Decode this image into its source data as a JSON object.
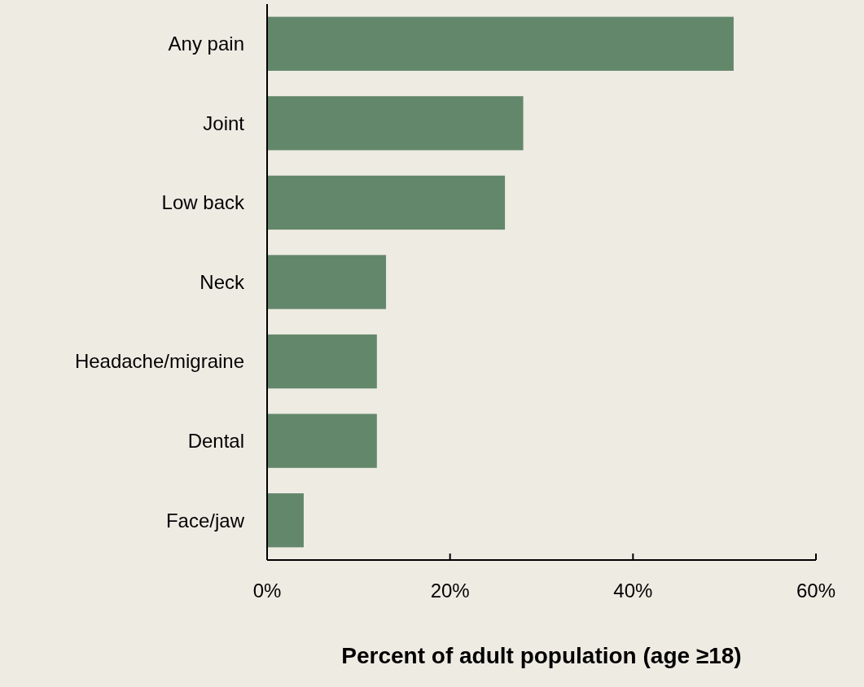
{
  "chart_data": {
    "type": "bar",
    "orientation": "horizontal",
    "categories": [
      "Any pain",
      "Joint",
      "Low back",
      "Neck",
      "Headache/migraine",
      "Dental",
      "Face/jaw"
    ],
    "values": [
      51,
      28,
      26,
      13,
      12,
      12,
      4
    ],
    "color": "#63876a",
    "xlim": [
      0,
      60
    ],
    "xticks": [
      {
        "value": 0,
        "label": "0%"
      },
      {
        "value": 20,
        "label": "20%"
      },
      {
        "value": 40,
        "label": "40%"
      },
      {
        "value": 60,
        "label": "60%"
      }
    ],
    "xlabel": "Percent of adult population (age ≥18)",
    "grid": false
  }
}
